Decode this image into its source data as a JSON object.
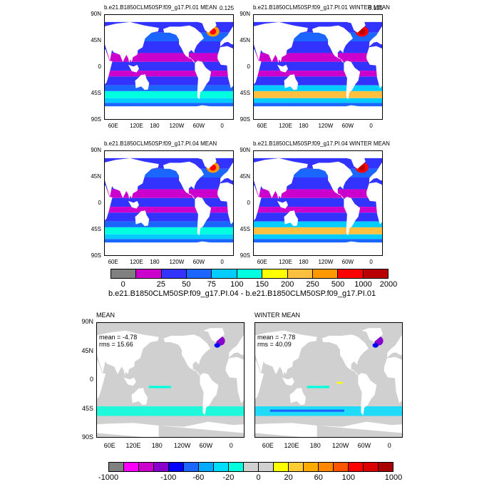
{
  "top_panels": [
    {
      "title": "b.e21.B1850CLM50SP.f09_g17.PI.01 MEAN",
      "value": "0.125"
    },
    {
      "title": "b.e21.B1850CLM50SP.f09_g17.PI.01 WINTER MEAN",
      "value": "0.125"
    },
    {
      "title": "b.e21.B1850CLM50SP.f09_g17.PI.04 MEAN",
      "value": ""
    },
    {
      "title": "b.e21.B1850CLM50SP.f09_g17.PI.04 WINTER MEAN",
      "value": ""
    }
  ],
  "lat_labels": [
    "90N",
    "45N",
    "0",
    "45S",
    "90S"
  ],
  "lon_labels": [
    "60E",
    "120E",
    "180",
    "120W",
    "60W",
    "0"
  ],
  "colorbar1": {
    "labels": [
      "0",
      "25",
      "50",
      "75",
      "100",
      "150",
      "200",
      "250",
      "500",
      "1000",
      "2000"
    ],
    "colors": [
      "#808080",
      "#cc00cc",
      "#3333ff",
      "#1a66ff",
      "#00ccff",
      "#00ffe0",
      "#ffff00",
      "#ffc040",
      "#ff9900",
      "#ff0000",
      "#bb0000"
    ]
  },
  "diff_title": "b.e21.B1850CLM50SP.f09_g17.PI.04 - b.e21.B1850CLM50SP.f09_g17.PI.01",
  "bottom_panels": [
    {
      "title": "MEAN",
      "mean": "mean = -4.78",
      "rms": "rms = 15.66"
    },
    {
      "title": "WINTER MEAN",
      "mean": "mean = -7.78",
      "rms": "rms = 40.09"
    }
  ],
  "colorbar2": {
    "labels": [
      "-1000",
      "-100",
      "-60",
      "-20",
      "0",
      "20",
      "60",
      "100",
      "1000"
    ],
    "colors": [
      "#808080",
      "#ff00ff",
      "#cc00cc",
      "#8800cc",
      "#0000ff",
      "#1a66ff",
      "#00aaff",
      "#00ddff",
      "#00ffdd",
      "#d0d0d0",
      "#d0d0d0",
      "#ffff00",
      "#ffcc33",
      "#ffaa00",
      "#ff8800",
      "#ff5500",
      "#ff0000",
      "#dd0000",
      "#aa0000"
    ]
  }
}
